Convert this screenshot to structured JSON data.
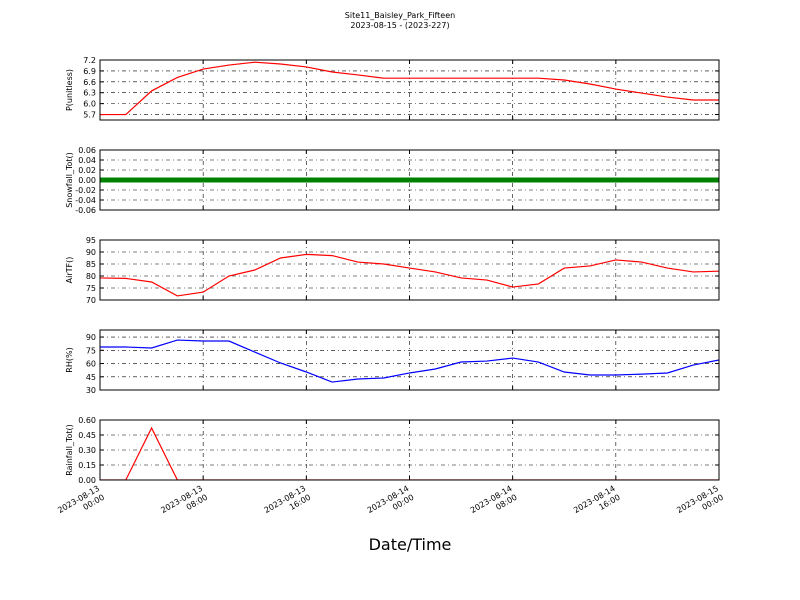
{
  "chart_data": [
    {
      "type": "line",
      "title": "Site11_Baisley_Park_Fifteen",
      "subtitle": "2023-08-15 - (2023-227)",
      "ylabel": "P(unitless)",
      "color": "#ff0000",
      "grid": true,
      "x": [
        "2023-08-13 00:00",
        "2023-08-13 02:00",
        "2023-08-13 04:00",
        "2023-08-13 06:00",
        "2023-08-13 08:00",
        "2023-08-13 10:00",
        "2023-08-13 12:00",
        "2023-08-13 14:00",
        "2023-08-13 16:00",
        "2023-08-13 18:00",
        "2023-08-13 20:00",
        "2023-08-13 22:00",
        "2023-08-14 00:00",
        "2023-08-14 02:00",
        "2023-08-14 04:00",
        "2023-08-14 06:00",
        "2023-08-14 08:00",
        "2023-08-14 10:00",
        "2023-08-14 12:00",
        "2023-08-14 14:00",
        "2023-08-14 16:00",
        "2023-08-14 18:00",
        "2023-08-14 20:00",
        "2023-08-14 22:00",
        "2023-08-15 00:00"
      ],
      "values": [
        5.7,
        5.7,
        6.35,
        6.72,
        6.95,
        7.06,
        7.14,
        7.09,
        7.01,
        6.87,
        6.79,
        6.7,
        6.7,
        6.7,
        6.7,
        6.7,
        6.7,
        6.7,
        6.65,
        6.54,
        6.4,
        6.29,
        6.18,
        6.1,
        6.1
      ],
      "ylim": [
        5.55,
        7.2
      ],
      "yticks": [
        {
          "value": 5.7,
          "label": "5.7"
        },
        {
          "value": 6,
          "label": "6.0"
        },
        6.3,
        6.6,
        6.9,
        7.2
      ]
    },
    {
      "type": "line",
      "ylabel": "Snowfall_Tot()",
      "color": "#008000",
      "marker": "o",
      "grid": true,
      "x": [
        "2023-08-13 00:00",
        "2023-08-13 02:00",
        "2023-08-13 04:00",
        "2023-08-13 06:00",
        "2023-08-13 08:00",
        "2023-08-13 10:00",
        "2023-08-13 12:00",
        "2023-08-13 14:00",
        "2023-08-13 16:00",
        "2023-08-13 18:00",
        "2023-08-13 20:00",
        "2023-08-13 22:00",
        "2023-08-14 00:00",
        "2023-08-14 02:00",
        "2023-08-14 04:00",
        "2023-08-14 06:00",
        "2023-08-14 08:00",
        "2023-08-14 10:00",
        "2023-08-14 12:00",
        "2023-08-14 14:00",
        "2023-08-14 16:00",
        "2023-08-14 18:00",
        "2023-08-14 20:00",
        "2023-08-14 22:00",
        "2023-08-15 00:00"
      ],
      "values": [
        0,
        0,
        0,
        0,
        0,
        0,
        0,
        0,
        0,
        0,
        0,
        0,
        0,
        0,
        0,
        0,
        0,
        0,
        0,
        0,
        0,
        0,
        0,
        0,
        0
      ],
      "ylim": [
        -0.06,
        0.06
      ],
      "yticks": [
        -0.06,
        -0.04,
        -0.02,
        {
          "value": 0,
          "label": "0.00"
        },
        0.02,
        0.04,
        0.06
      ]
    },
    {
      "type": "line",
      "ylabel": "AirTF()",
      "color": "#ff0000",
      "grid": true,
      "x": [
        "2023-08-13 00:00",
        "2023-08-13 02:00",
        "2023-08-13 04:00",
        "2023-08-13 06:00",
        "2023-08-13 08:00",
        "2023-08-13 10:00",
        "2023-08-13 12:00",
        "2023-08-13 14:00",
        "2023-08-13 16:00",
        "2023-08-13 18:00",
        "2023-08-13 20:00",
        "2023-08-13 22:00",
        "2023-08-14 00:00",
        "2023-08-14 02:00",
        "2023-08-14 04:00",
        "2023-08-14 06:00",
        "2023-08-14 08:00",
        "2023-08-14 10:00",
        "2023-08-14 12:00",
        "2023-08-14 14:00",
        "2023-08-14 16:00",
        "2023-08-14 18:00",
        "2023-08-14 20:00",
        "2023-08-14 22:00",
        "2023-08-15 00:00"
      ],
      "values": [
        79.2,
        79,
        77.5,
        71.7,
        73.3,
        80,
        82.5,
        87.5,
        89,
        88.5,
        85.8,
        85,
        83.3,
        81.7,
        79.2,
        78.3,
        75.4,
        76.7,
        83.3,
        84.2,
        86.7,
        85.8,
        83.3,
        81.7,
        82
      ],
      "ylim": [
        70,
        95
      ],
      "yticks": [
        70,
        75,
        80,
        85,
        90,
        95
      ]
    },
    {
      "type": "line",
      "ylabel": "RH(%)",
      "color": "#0000ff",
      "grid": true,
      "x": [
        "2023-08-13 00:00",
        "2023-08-13 02:00",
        "2023-08-13 04:00",
        "2023-08-13 06:00",
        "2023-08-13 08:00",
        "2023-08-13 10:00",
        "2023-08-13 12:00",
        "2023-08-13 14:00",
        "2023-08-13 16:00",
        "2023-08-13 18:00",
        "2023-08-13 20:00",
        "2023-08-13 22:00",
        "2023-08-14 00:00",
        "2023-08-14 02:00",
        "2023-08-14 04:00",
        "2023-08-14 06:00",
        "2023-08-14 08:00",
        "2023-08-14 10:00",
        "2023-08-14 12:00",
        "2023-08-14 14:00",
        "2023-08-14 16:00",
        "2023-08-14 18:00",
        "2023-08-14 20:00",
        "2023-08-14 22:00",
        "2023-08-15 00:00"
      ],
      "values": [
        78.7,
        78.7,
        77.6,
        86.6,
        85.5,
        85.5,
        73,
        60.6,
        50.4,
        39,
        42.5,
        43.6,
        49.3,
        53.8,
        61.7,
        62.8,
        66.2,
        61.7,
        50.4,
        47,
        47,
        48,
        49.3,
        58.3,
        64
      ],
      "ylim": [
        30,
        98
      ],
      "yticks": [
        30,
        45,
        60,
        75,
        90
      ]
    },
    {
      "type": "line",
      "ylabel": "Rainfall_Tot()",
      "xlabel": "Date/Time",
      "color": "#ff0000",
      "grid": true,
      "x": [
        "2023-08-13 00:00",
        "2023-08-13 02:00",
        "2023-08-13 04:00",
        "2023-08-13 06:00",
        "2023-08-13 08:00",
        "2023-08-13 10:00",
        "2023-08-13 12:00",
        "2023-08-13 14:00",
        "2023-08-13 16:00",
        "2023-08-13 18:00",
        "2023-08-13 20:00",
        "2023-08-13 22:00",
        "2023-08-14 00:00",
        "2023-08-14 02:00",
        "2023-08-14 04:00",
        "2023-08-14 06:00",
        "2023-08-14 08:00",
        "2023-08-14 10:00",
        "2023-08-14 12:00",
        "2023-08-14 14:00",
        "2023-08-14 16:00",
        "2023-08-14 18:00",
        "2023-08-14 20:00",
        "2023-08-14 22:00",
        "2023-08-15 00:00"
      ],
      "values": [
        0,
        0,
        0.52,
        0,
        0,
        0,
        0,
        0,
        0,
        0,
        0,
        0,
        0,
        0,
        0,
        0,
        0,
        0,
        0,
        0,
        0,
        0,
        0,
        0,
        0
      ],
      "ylim": [
        0,
        0.6
      ],
      "yticks": [
        {
          "value": 0,
          "label": "0.00"
        },
        0.15,
        {
          "value": 0.3,
          "label": "0.30"
        },
        0.45,
        {
          "value": 0.6,
          "label": "0.60"
        }
      ],
      "xlim": [
        "2023-08-13 00:00",
        "2023-08-15 00:00"
      ],
      "xticks": [
        "2023-08-13 00:00",
        "2023-08-13 08:00",
        "2023-08-13 16:00",
        "2023-08-14 00:00",
        "2023-08-14 08:00",
        "2023-08-14 16:00",
        "2023-08-15 00:00"
      ]
    }
  ]
}
